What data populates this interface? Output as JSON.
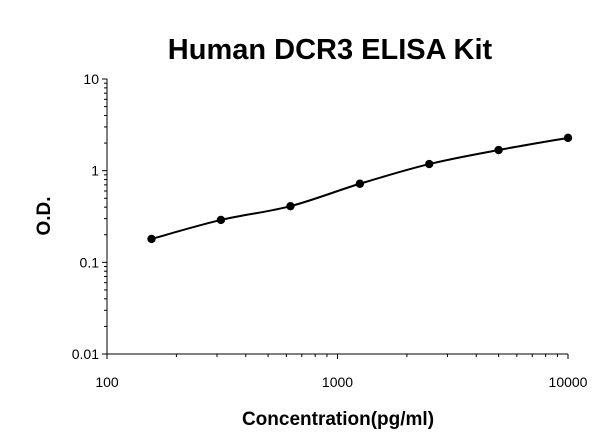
{
  "chart_data": {
    "type": "scatter",
    "title": "Human DCR3 ELISA Kit",
    "xlabel": "Concentration(pg/ml)",
    "ylabel": "O.D.",
    "x_scale": "log",
    "y_scale": "log",
    "xlim": [
      100,
      10000
    ],
    "ylim": [
      0.01,
      10
    ],
    "x_ticks": [
      {
        "value": 100,
        "label": "100"
      },
      {
        "value": 1000,
        "label": "1000"
      },
      {
        "value": 10000,
        "label": "10000"
      }
    ],
    "y_ticks": [
      {
        "value": 0.01,
        "label": "0.01"
      },
      {
        "value": 0.1,
        "label": "0.1"
      },
      {
        "value": 1,
        "label": "1"
      },
      {
        "value": 10,
        "label": "10"
      }
    ],
    "grid": false,
    "legend": "none",
    "fit_line": true,
    "series": [
      {
        "x": [
          156,
          312,
          625,
          1250,
          2500,
          5000,
          10000
        ],
        "y": [
          0.18,
          0.29,
          0.41,
          0.72,
          1.18,
          1.68,
          2.28
        ]
      }
    ],
    "colors": {
      "marker": "#000000",
      "line": "#000000",
      "axis": "#000000"
    }
  }
}
